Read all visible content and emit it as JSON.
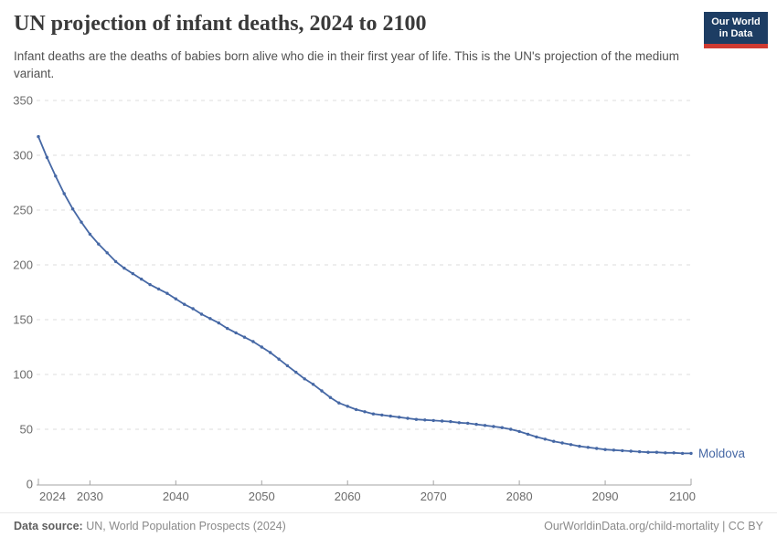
{
  "header": {
    "title": "UN projection of infant deaths, 2024 to 2100",
    "subtitle": "Infant deaths are the deaths of babies born alive who die in their first year of life. This is the UN's projection of the medium variant.",
    "logo": {
      "line1": "Our World",
      "line2": "in Data",
      "bg_color": "#1d3d63",
      "accent_color": "#cf3a31"
    }
  },
  "chart_data": {
    "type": "line",
    "title": "UN projection of infant deaths, 2024 to 2100",
    "xlabel": "",
    "ylabel": "",
    "xlim": [
      2024,
      2100
    ],
    "ylim": [
      0,
      350
    ],
    "x_ticks": [
      2024,
      2030,
      2040,
      2050,
      2060,
      2070,
      2080,
      2090,
      2100
    ],
    "y_ticks": [
      0,
      50,
      100,
      150,
      200,
      250,
      300,
      350
    ],
    "grid": "horizontal-dashed",
    "legend_position": "end-of-line-label",
    "series": [
      {
        "name": "Moldova",
        "color": "#4668a5",
        "x": [
          2024,
          2025,
          2026,
          2027,
          2028,
          2029,
          2030,
          2031,
          2032,
          2033,
          2034,
          2035,
          2036,
          2037,
          2038,
          2039,
          2040,
          2041,
          2042,
          2043,
          2044,
          2045,
          2046,
          2047,
          2048,
          2049,
          2050,
          2051,
          2052,
          2053,
          2054,
          2055,
          2056,
          2057,
          2058,
          2059,
          2060,
          2061,
          2062,
          2063,
          2064,
          2065,
          2066,
          2067,
          2068,
          2069,
          2070,
          2071,
          2072,
          2073,
          2074,
          2075,
          2076,
          2077,
          2078,
          2079,
          2080,
          2081,
          2082,
          2083,
          2084,
          2085,
          2086,
          2087,
          2088,
          2089,
          2090,
          2091,
          2092,
          2093,
          2094,
          2095,
          2096,
          2097,
          2098,
          2099,
          2100
        ],
        "values": [
          317,
          298,
          281,
          265,
          251,
          239,
          228,
          219,
          211,
          203,
          197,
          192,
          187,
          182,
          178,
          174,
          169,
          164,
          160,
          155,
          151,
          147,
          142,
          138,
          134,
          130,
          125,
          120,
          114,
          108,
          102,
          96,
          91,
          85,
          79,
          74,
          71,
          68,
          66,
          64,
          63,
          62,
          61,
          60,
          59,
          58.5,
          58,
          57.5,
          57,
          56,
          55.5,
          54.5,
          53.5,
          52.5,
          51.5,
          50,
          48,
          45.5,
          43,
          41,
          39,
          37.5,
          36,
          34.5,
          33.5,
          32.5,
          31.5,
          31,
          30.5,
          30,
          29.5,
          29,
          29,
          28.5,
          28.5,
          28,
          28
        ]
      }
    ]
  },
  "footer": {
    "source_label": "Data source:",
    "source_text": "UN, World Population Prospects (2024)",
    "credit": "OurWorldinData.org/child-mortality | CC BY"
  }
}
